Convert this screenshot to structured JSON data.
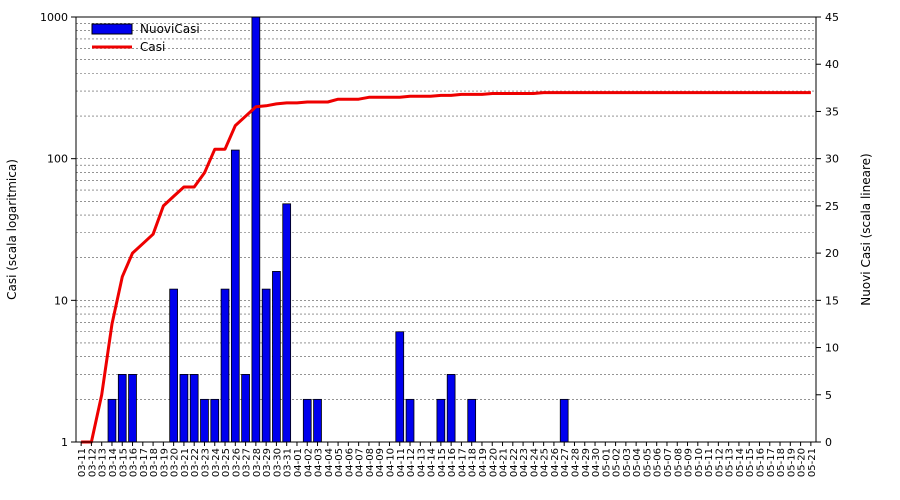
{
  "chart_data": {
    "type": "bar+line",
    "categories": [
      "03-11",
      "03-12",
      "03-13",
      "03-14",
      "03-15",
      "03-16",
      "03-17",
      "03-18",
      "03-19",
      "03-20",
      "03-21",
      "03-22",
      "03-23",
      "03-24",
      "03-25",
      "03-26",
      "03-27",
      "03-28",
      "03-29",
      "03-30",
      "03-31",
      "04-01",
      "04-02",
      "04-03",
      "04-04",
      "04-05",
      "04-06",
      "04-07",
      "04-08",
      "04-09",
      "04-10",
      "04-11",
      "04-12",
      "04-13",
      "04-14",
      "04-15",
      "04-16",
      "04-17",
      "04-18",
      "04-19",
      "04-20",
      "04-21",
      "04-22",
      "04-23",
      "04-24",
      "04-25",
      "04-26",
      "04-27",
      "04-28",
      "04-29",
      "04-30",
      "05-01",
      "05-02",
      "05-03",
      "05-04",
      "05-05",
      "05-06",
      "05-07",
      "05-08",
      "05-09",
      "05-10",
      "05-11",
      "05-12",
      "05-13",
      "05-14",
      "05-15",
      "05-16",
      "05-17",
      "05-18",
      "05-19",
      "05-20",
      "05-21"
    ],
    "series": [
      {
        "name": "NuoviCasi",
        "kind": "bar",
        "axis": "left-log",
        "color": "#0000ee",
        "values": [
          1,
          1,
          1,
          2,
          3,
          3,
          1,
          1,
          1,
          12,
          3,
          3,
          2,
          2,
          12,
          115,
          3,
          1000,
          12,
          16,
          48,
          1,
          2,
          2,
          1,
          1,
          1,
          1,
          1,
          1,
          1,
          6,
          2,
          1,
          1,
          2,
          3,
          1,
          2,
          1,
          1,
          1,
          1,
          1,
          1,
          1,
          1,
          2,
          1,
          1,
          1,
          1,
          1,
          1,
          1,
          1,
          1,
          1,
          1,
          1,
          1,
          1,
          1,
          1,
          1,
          1,
          1,
          1,
          1,
          1,
          1,
          1
        ]
      },
      {
        "name": "Casi",
        "kind": "line",
        "axis": "right-linear",
        "color": "#ee0000",
        "values": [
          0,
          0,
          5,
          12.5,
          17.5,
          20,
          21,
          22,
          25,
          26,
          27,
          27,
          28.5,
          31,
          31,
          33.5,
          34.5,
          35.5,
          35.6,
          35.8,
          35.9,
          35.9,
          36,
          36,
          36,
          36.3,
          36.3,
          36.3,
          36.5,
          36.5,
          36.5,
          36.5,
          36.6,
          36.6,
          36.6,
          36.7,
          36.7,
          36.8,
          36.8,
          36.8,
          36.9,
          36.9,
          36.9,
          36.9,
          36.9,
          37,
          37,
          37,
          37,
          37,
          37,
          37,
          37,
          37,
          37,
          37,
          37,
          37,
          37,
          37,
          37,
          37,
          37,
          37,
          37,
          37,
          37,
          37,
          37,
          37,
          37,
          37
        ]
      }
    ],
    "ylabel": "Casi (scala logaritmica)",
    "y2label": "Nuovi Casi (scala lineare)",
    "ylim": [
      1,
      1000
    ],
    "yscale": "log",
    "y2lim": [
      0,
      45
    ],
    "yticks": [
      "1",
      "10",
      "100",
      "1000"
    ],
    "y2ticks": [
      "0",
      "5",
      "10",
      "15",
      "20",
      "25",
      "30",
      "35",
      "40",
      "45"
    ],
    "grid": true,
    "legend": "top-left"
  }
}
